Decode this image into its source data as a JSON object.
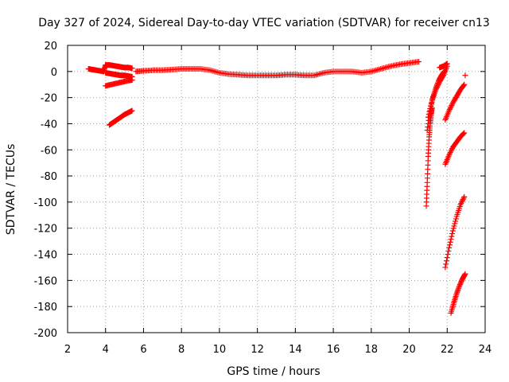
{
  "chart_data": {
    "type": "scatter",
    "title": "Day 327 of 2024, Sidereal Day-to-day VTEC variation (SDTVAR) for receiver cn13",
    "xlabel": "GPS time / hours",
    "ylabel": "SDTVAR / TECUs",
    "xlim": [
      2,
      24
    ],
    "ylim": [
      -200,
      20
    ],
    "xticks": [
      2,
      4,
      6,
      8,
      10,
      12,
      14,
      16,
      18,
      20,
      22,
      24
    ],
    "yticks": [
      20,
      0,
      -20,
      -40,
      -60,
      -80,
      -100,
      -120,
      -140,
      -160,
      -180,
      -200
    ],
    "grid": true,
    "marker": "plus",
    "color": "#ff0000",
    "series": [
      {
        "x": [
          3.1,
          3.3,
          3.5,
          3.7,
          3.9,
          4.0,
          4.2,
          4.4,
          4.6,
          4.8,
          5.0,
          5.2,
          5.4
        ],
        "y": [
          2,
          1.5,
          1,
          0.5,
          0,
          5,
          5,
          4.5,
          4,
          3.5,
          3,
          3,
          2.5
        ]
      },
      {
        "x": [
          4.0,
          4.2,
          4.4,
          4.6,
          4.8,
          5.0,
          5.2,
          5.4
        ],
        "y": [
          -1,
          -1.5,
          -2,
          -2.5,
          -3,
          -3,
          -3.5,
          -4
        ]
      },
      {
        "x": [
          4.0,
          4.3,
          4.6,
          4.9,
          5.2,
          5.4
        ],
        "y": [
          -11,
          -10,
          -9,
          -8,
          -7,
          -6.5
        ]
      },
      {
        "x": [
          4.2,
          4.4,
          4.6,
          4.8,
          5.0,
          5.2,
          5.4
        ],
        "y": [
          -41,
          -39,
          -37,
          -35,
          -33,
          -31.5,
          -30
        ]
      },
      {
        "x": [
          5.6,
          6.0,
          6.5,
          7.0,
          7.5,
          8.0,
          8.5,
          9.0,
          9.5,
          10.0,
          10.5,
          11.0,
          11.5,
          12.0,
          12.5,
          13.0,
          13.5,
          14.0,
          14.5,
          15.0,
          15.5,
          16.0,
          16.5,
          17.0,
          17.5,
          18.0,
          18.5,
          19.0,
          19.5,
          20.0,
          20.5
        ],
        "y": [
          0,
          0.5,
          1,
          1,
          1.5,
          2,
          2,
          2,
          1,
          -1,
          -2,
          -2.5,
          -3,
          -3,
          -3,
          -3,
          -2.5,
          -2.5,
          -3,
          -3,
          -1,
          0,
          0,
          0,
          -1,
          0,
          2,
          4,
          5.5,
          6.5,
          7.5
        ]
      },
      {
        "x": [
          20.9,
          20.95,
          21.0,
          21.05,
          21.1,
          21.15,
          21.2
        ],
        "y": [
          -103,
          -85,
          -65,
          -50,
          -40,
          -33,
          -28
        ]
      },
      {
        "x": [
          20.95,
          21.1,
          21.25,
          21.4,
          21.55,
          21.7,
          21.85
        ],
        "y": [
          -45,
          -30,
          -20,
          -13,
          -7,
          -3,
          0
        ]
      },
      {
        "x": [
          21.0,
          21.2,
          21.4,
          21.6,
          21.8,
          22.0
        ],
        "y": [
          -35,
          -22,
          -14,
          -8,
          -3,
          4
        ]
      },
      {
        "x": [
          21.6,
          21.8,
          22.0
        ],
        "y": [
          3,
          4,
          6
        ]
      },
      {
        "x": [
          21.9,
          22.1,
          22.3,
          22.5,
          22.7,
          22.9
        ],
        "y": [
          -37,
          -30,
          -24,
          -19,
          -14,
          -10
        ]
      },
      {
        "x": [
          22.95
        ],
        "y": [
          -3
        ]
      },
      {
        "x": [
          21.9,
          22.1,
          22.3,
          22.5,
          22.7,
          22.9
        ],
        "y": [
          -71,
          -64,
          -58,
          -54,
          -50,
          -47
        ]
      },
      {
        "x": [
          21.9,
          22.1,
          22.3,
          22.5,
          22.7,
          22.9
        ],
        "y": [
          -150,
          -135,
          -122,
          -111,
          -102,
          -96
        ]
      },
      {
        "x": [
          22.2,
          22.35,
          22.5,
          22.65,
          22.8,
          22.95
        ],
        "y": [
          -185,
          -177,
          -170,
          -164,
          -159,
          -155
        ]
      }
    ]
  }
}
